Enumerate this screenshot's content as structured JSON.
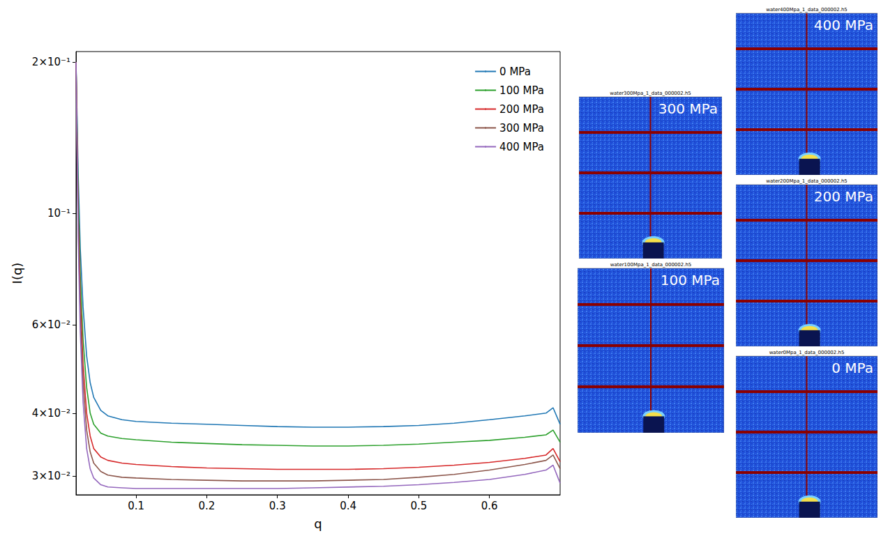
{
  "chart_data": {
    "type": "line",
    "x_label": "q",
    "y_label": "I(q)",
    "log": "y",
    "grid": false,
    "legend": "upper right",
    "xlim": [
      0.015,
      0.7
    ],
    "xticks": [
      0.1,
      0.2,
      0.3,
      0.4,
      0.5,
      0.6
    ],
    "ylim": [
      0.0275,
      0.21
    ],
    "yticks": [
      {
        "value": 0.2,
        "label": "2×10⁻¹"
      },
      {
        "value": 0.1,
        "label": "10⁻¹"
      },
      {
        "value": 0.06,
        "label": "6×10⁻²"
      },
      {
        "value": 0.04,
        "label": "4×10⁻²"
      },
      {
        "value": 0.03,
        "label": "3×10⁻²"
      }
    ],
    "x": [
      0.015,
      0.018,
      0.021,
      0.025,
      0.03,
      0.035,
      0.04,
      0.05,
      0.06,
      0.08,
      0.1,
      0.15,
      0.2,
      0.25,
      0.3,
      0.35,
      0.4,
      0.45,
      0.5,
      0.55,
      0.6,
      0.65,
      0.68,
      0.69,
      0.7
    ],
    "series": [
      {
        "name": "0 MPa",
        "color": "#1f77b4",
        "values": [
          0.2,
          0.12,
          0.085,
          0.065,
          0.052,
          0.046,
          0.043,
          0.0405,
          0.0395,
          0.0388,
          0.0385,
          0.0382,
          0.038,
          0.0378,
          0.0376,
          0.0375,
          0.0375,
          0.0376,
          0.0378,
          0.0382,
          0.0388,
          0.0395,
          0.04,
          0.041,
          0.038
        ]
      },
      {
        "name": "100 MPa",
        "color": "#2ca02c",
        "values": [
          0.2,
          0.11,
          0.075,
          0.056,
          0.045,
          0.04,
          0.038,
          0.0365,
          0.036,
          0.0356,
          0.0354,
          0.035,
          0.0348,
          0.0346,
          0.0345,
          0.0344,
          0.0344,
          0.0345,
          0.0347,
          0.035,
          0.0353,
          0.0358,
          0.0362,
          0.037,
          0.035
        ]
      },
      {
        "name": "200 MPa",
        "color": "#d62728",
        "values": [
          0.2,
          0.1,
          0.068,
          0.05,
          0.04,
          0.036,
          0.034,
          0.0327,
          0.0322,
          0.0318,
          0.0316,
          0.0313,
          0.0311,
          0.031,
          0.0309,
          0.0309,
          0.0309,
          0.031,
          0.0312,
          0.0315,
          0.0319,
          0.0325,
          0.033,
          0.034,
          0.032
        ]
      },
      {
        "name": "300 MPa",
        "color": "#8c564b",
        "values": [
          0.2,
          0.095,
          0.063,
          0.046,
          0.037,
          0.0335,
          0.0318,
          0.0306,
          0.0301,
          0.0298,
          0.0297,
          0.0295,
          0.0294,
          0.0293,
          0.0293,
          0.0293,
          0.0294,
          0.0295,
          0.0298,
          0.0302,
          0.0308,
          0.0316,
          0.0322,
          0.033,
          0.031
        ]
      },
      {
        "name": "400 MPa",
        "color": "#9467bd",
        "values": [
          0.2,
          0.09,
          0.058,
          0.042,
          0.034,
          0.031,
          0.0297,
          0.0288,
          0.0285,
          0.0284,
          0.0283,
          0.0283,
          0.0283,
          0.0283,
          0.0283,
          0.0284,
          0.0285,
          0.0286,
          0.0288,
          0.0291,
          0.0295,
          0.0302,
          0.0308,
          0.0315,
          0.029
        ]
      }
    ]
  },
  "images": [
    {
      "title": "water400Mpa_1_data_000002.h5",
      "label": "400 MPa"
    },
    {
      "title": "water300Mpa_1_data_000002.h5",
      "label": "300 MPa"
    },
    {
      "title": "water200Mpa_1_data_000002.h5",
      "label": "200 MPa"
    },
    {
      "title": "water100Mpa_1_data_000002.h5",
      "label": "100 MPa"
    },
    {
      "title": "water0Mpa_1_data_000002.h5",
      "label": "0 MPa"
    }
  ]
}
